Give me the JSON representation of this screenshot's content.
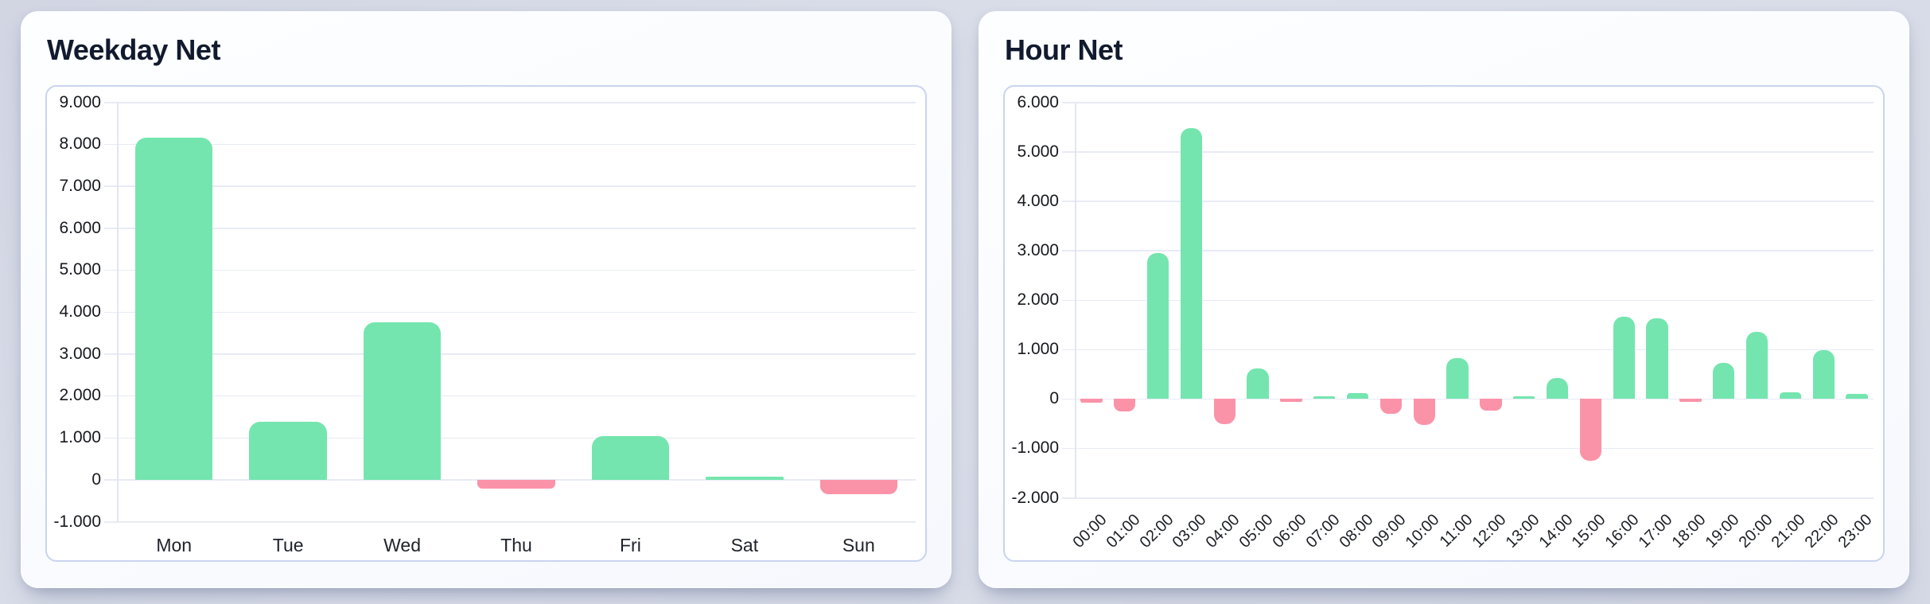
{
  "page": {
    "background_color": "#d8dce8",
    "card_background": "#fbfcff",
    "panel_border_color": "#c9d4ef",
    "title_color": "#111a2e",
    "gridline_color": "#e7ebf4"
  },
  "cards": [
    {
      "title_bind": "chart_data.0.title",
      "name": "weekday-net-card"
    },
    {
      "title_bind": "chart_data.1.title",
      "name": "hour-net-card"
    }
  ],
  "chart_data": [
    {
      "type": "bar",
      "title": "Weekday Net",
      "xlabel": "",
      "ylabel": "",
      "categories": [
        "Mon",
        "Tue",
        "Wed",
        "Thu",
        "Fri",
        "Sat",
        "Sun"
      ],
      "values": [
        8150,
        1390,
        3760,
        -220,
        1050,
        40,
        -350
      ],
      "ylim": [
        -1000,
        9000
      ],
      "ytick_step": 1000,
      "ytick_labels": [
        "9.000",
        "8.000",
        "7.000",
        "6.000",
        "5.000",
        "4.000",
        "3.000",
        "2.000",
        "1.000",
        "0",
        "-1.000"
      ],
      "grid": true,
      "legend": "none",
      "positive_color": "#74e5ae",
      "negative_color": "#fb93a8",
      "label_rotation": 0,
      "bar_ratio": 0.68,
      "max_corner_radius": 14
    },
    {
      "type": "bar",
      "title": "Hour Net",
      "xlabel": "",
      "ylabel": "",
      "categories": [
        "00:00",
        "01:00",
        "02:00",
        "03:00",
        "04:00",
        "05:00",
        "06:00",
        "07:00",
        "08:00",
        "09:00",
        "10:00",
        "11:00",
        "12:00",
        "13:00",
        "14:00",
        "15:00",
        "16:00",
        "17:00",
        "18:00",
        "19:00",
        "20:00",
        "21:00",
        "22:00",
        "23:00"
      ],
      "values": [
        -80,
        -260,
        2950,
        5480,
        -510,
        620,
        -40,
        20,
        120,
        -300,
        -520,
        820,
        -240,
        40,
        430,
        -1250,
        1660,
        1630,
        -25,
        730,
        1360,
        140,
        980,
        100
      ],
      "ylim": [
        -2000,
        6000
      ],
      "ytick_step": 1000,
      "ytick_labels": [
        "6.000",
        "5.000",
        "4.000",
        "3.000",
        "2.000",
        "1.000",
        "0",
        "-1.000",
        "-2.000"
      ],
      "grid": true,
      "legend": "none",
      "positive_color": "#74e5ae",
      "negative_color": "#fb93a8",
      "label_rotation": -45,
      "bar_ratio": 0.65,
      "max_corner_radius": 12
    }
  ]
}
